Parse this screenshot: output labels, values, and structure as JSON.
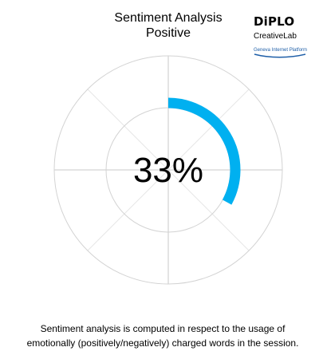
{
  "chart_data": {
    "type": "gauge",
    "title": "Sentiment Analysis",
    "subtitle": "Positive",
    "value_label": "33%",
    "value": 0.33,
    "range": [
      0,
      1
    ],
    "rings": 2,
    "spokes": 8,
    "colors": {
      "value": "#00b0f0",
      "grid": "#d3d3d3",
      "text": "#000000"
    }
  },
  "logo": {
    "name": "DiPLO",
    "line2": "CreativeLab",
    "line3": "Geneva Internet Platform",
    "color": "#1f5fa8"
  },
  "footnote": {
    "line1": "Sentiment analysis is computed in respect to the usage of",
    "line2": "emotionally (positively/negatively) charged words in the session."
  }
}
